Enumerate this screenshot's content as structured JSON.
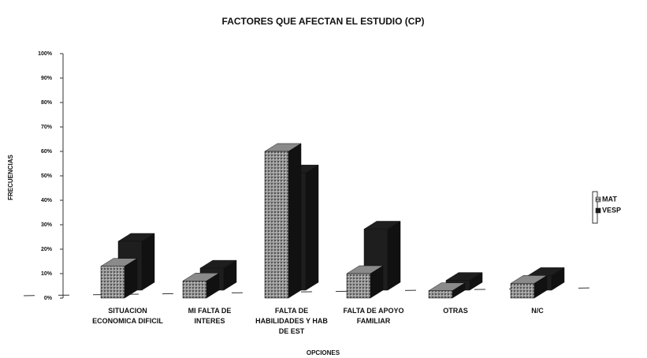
{
  "chart_data": {
    "type": "bar3d",
    "title": "FACTORES QUE AFECTAN EL ESTUDIO (CP)",
    "x_label": "OPCIONES",
    "y_label": "FRECUENCIAS",
    "categories": [
      "SITUACION ECONOMICA DIFICIL",
      "MI FALTA DE INTERES",
      "FALTA DE HABILIDADES Y HAB DE EST",
      "FALTA DE APOYO FAMILIAR",
      "OTRAS",
      "N/C"
    ],
    "series": [
      {
        "name": "MAT",
        "color": "#8a8a8a",
        "values": [
          13,
          7,
          60,
          10,
          3,
          6
        ]
      },
      {
        "name": "VESP",
        "color": "#1e1e1e",
        "values": [
          20,
          9,
          48,
          25,
          4,
          6
        ]
      }
    ],
    "ylim": [
      0,
      100
    ],
    "yticks": [
      {
        "value": 0,
        "label": "0%"
      },
      {
        "value": 10,
        "label": "10%"
      },
      {
        "value": 20,
        "label": "20%"
      },
      {
        "value": 30,
        "label": "30%"
      },
      {
        "value": 40,
        "label": "40%"
      },
      {
        "value": 50,
        "label": "50%"
      },
      {
        "value": 60,
        "label": "60%"
      },
      {
        "value": 70,
        "label": "70%"
      },
      {
        "value": 80,
        "label": "80%"
      },
      {
        "value": 90,
        "label": "90%"
      },
      {
        "value": 100,
        "label": "100%"
      }
    ],
    "legend": "right"
  }
}
